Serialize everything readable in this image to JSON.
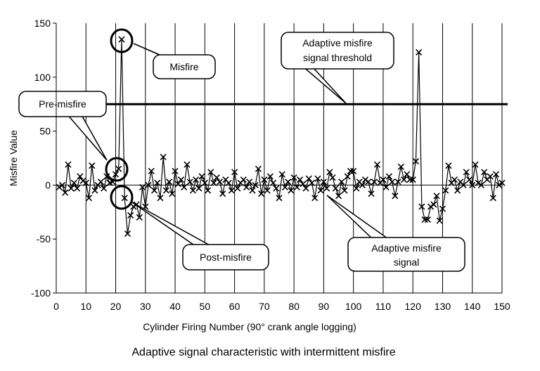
{
  "chart_data": {
    "type": "line",
    "title": "Adaptive signal characteristic with intermittent misfire",
    "xlabel": "Cylinder Firing Number (90° crank angle logging)",
    "ylabel": "Misfire Value",
    "xlim": [
      0,
      150
    ],
    "ylim": [
      -100,
      150
    ],
    "xticks": [
      0,
      10,
      20,
      30,
      40,
      50,
      60,
      70,
      80,
      90,
      100,
      110,
      120,
      130,
      140,
      150
    ],
    "yticks": [
      150,
      100,
      50,
      0,
      -50,
      -100
    ],
    "grid": "vertical",
    "series": [
      {
        "name": "Adaptive misfire signal",
        "marker": "x",
        "x_start": 1,
        "values": [
          -2,
          0,
          -7,
          19,
          -3,
          2,
          -3,
          8,
          4,
          2,
          -12,
          18,
          -5,
          0,
          3,
          -3,
          8,
          2,
          3,
          10,
          15,
          135,
          -12,
          -45,
          -28,
          -20,
          -18,
          -30,
          -2,
          -20,
          0,
          13,
          -5,
          2,
          -12,
          26,
          -5,
          3,
          -8,
          13,
          1,
          5,
          -2,
          19,
          3,
          -5,
          5,
          -3,
          8,
          2,
          -5,
          12,
          2,
          7,
          3,
          -8,
          5,
          2,
          -5,
          12,
          -3,
          2,
          5,
          -2,
          3,
          -5,
          0,
          15,
          -8,
          5,
          -5,
          8,
          2,
          -3,
          -12,
          10,
          -2,
          3,
          -5,
          7,
          -2,
          5,
          1,
          -3,
          6,
          2,
          -12,
          6,
          -5,
          3,
          -3,
          12,
          7,
          -3,
          -10,
          3,
          -5,
          8,
          13,
          13,
          -3,
          3,
          0,
          5,
          3,
          -8,
          3,
          19,
          2,
          5,
          -2,
          8,
          3,
          -10,
          3,
          17,
          5,
          10,
          5,
          5,
          22,
          123,
          -20,
          -32,
          -32,
          -20,
          -18,
          -10,
          -33,
          -22,
          -5,
          18,
          2,
          5,
          -5,
          3,
          0,
          12,
          5,
          0,
          19,
          2,
          0,
          12,
          5,
          8,
          -12,
          10,
          0,
          2
        ]
      },
      {
        "name": "Adaptive misfire signal threshold",
        "constant": 75
      }
    ],
    "annotations": {
      "misfire": "Misfire",
      "threshold": [
        "Adaptive misfire",
        "signal threshold"
      ],
      "pre_misfire": "Pre-misfire",
      "post_misfire": "Post-misfire",
      "signal": [
        "Adaptive misfire",
        "signal"
      ]
    }
  }
}
